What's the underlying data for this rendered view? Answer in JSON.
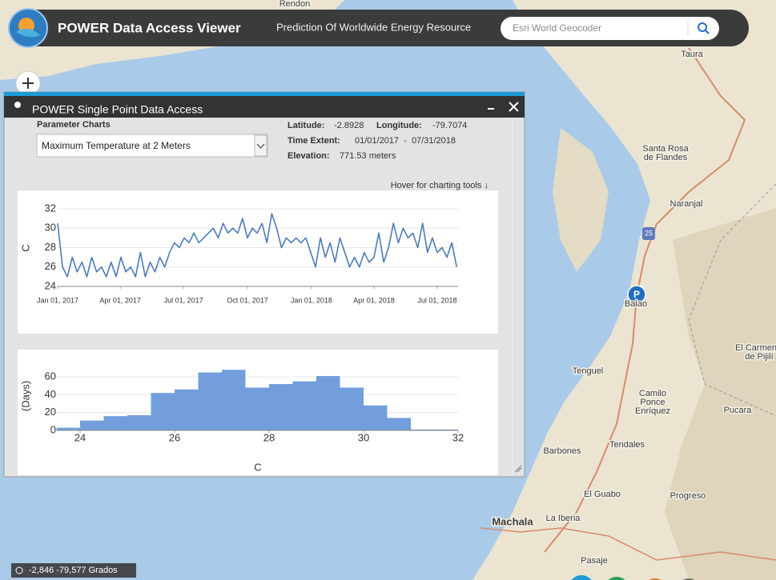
{
  "header": {
    "title": "POWER Data Access Viewer",
    "subtitle": "Prediction Of Worldwide Energy Resource",
    "search_placeholder": "Esri World Geocoder"
  },
  "map": {
    "labels": [
      "Rendon",
      "Taura",
      "Santa Rosa",
      "de Flandes",
      "Naranjal",
      "Balao",
      "El Carmen",
      "de Pijilí",
      "Tenguel",
      "Camilo",
      "Ponce",
      "Enríquez",
      "Pucara",
      "Tendales",
      "Barbones",
      "El Guabo",
      "Progreso",
      "Machala",
      "La Iberia",
      "Pasaje",
      "25"
    ],
    "marker_label": "P",
    "coordinates": "-2,846 -79,577 Grados"
  },
  "panel": {
    "title": "POWER Single Point Data Access",
    "section_label": "Parameter Charts",
    "parameter": "Maximum Temperature at 2 Meters",
    "latitude_label": "Latitude:",
    "latitude": "-2.8928",
    "longitude_label": "Longitude:",
    "longitude": "-79.7074",
    "time_extent_label": "Time Extent:",
    "time_extent": "01/01/2017  -  07/31/2018",
    "elevation_label": "Elevation:",
    "elevation": "771.53 meters",
    "hint": "Hover for charting tools ↓"
  },
  "chart_data": [
    {
      "type": "line",
      "ylabel": "C",
      "color": "#4a7cc4",
      "x": [
        "2017-01-01",
        "2017-01-08",
        "2017-01-15",
        "2017-01-22",
        "2017-01-29",
        "2017-02-05",
        "2017-02-12",
        "2017-02-19",
        "2017-02-26",
        "2017-03-05",
        "2017-03-12",
        "2017-03-19",
        "2017-03-26",
        "2017-04-02",
        "2017-04-09",
        "2017-04-16",
        "2017-04-23",
        "2017-04-30",
        "2017-05-07",
        "2017-05-14",
        "2017-05-21",
        "2017-05-28",
        "2017-06-04",
        "2017-06-11",
        "2017-06-18",
        "2017-06-25",
        "2017-07-02",
        "2017-07-09",
        "2017-07-16",
        "2017-07-23",
        "2017-07-30",
        "2017-08-06",
        "2017-08-13",
        "2017-08-20",
        "2017-08-27",
        "2017-09-03",
        "2017-09-10",
        "2017-09-17",
        "2017-09-24",
        "2017-10-01",
        "2017-10-08",
        "2017-10-15",
        "2017-10-22",
        "2017-10-29",
        "2017-11-05",
        "2017-11-12",
        "2017-11-19",
        "2017-11-26",
        "2017-12-03",
        "2017-12-10",
        "2017-12-17",
        "2017-12-24",
        "2017-12-31",
        "2018-01-07",
        "2018-01-14",
        "2018-01-21",
        "2018-01-28",
        "2018-02-04",
        "2018-02-11",
        "2018-02-18",
        "2018-02-25",
        "2018-03-04",
        "2018-03-11",
        "2018-03-18",
        "2018-03-25",
        "2018-04-01",
        "2018-04-08",
        "2018-04-15",
        "2018-04-22",
        "2018-04-29",
        "2018-05-06",
        "2018-05-13",
        "2018-05-20",
        "2018-05-27",
        "2018-06-03",
        "2018-06-10",
        "2018-06-17",
        "2018-06-24",
        "2018-07-01",
        "2018-07-08",
        "2018-07-15",
        "2018-07-22",
        "2018-07-29"
      ],
      "values": [
        30.5,
        26,
        25,
        27,
        25.5,
        26.5,
        25,
        27,
        25.5,
        26,
        25,
        26.5,
        25,
        27,
        25.5,
        26,
        25,
        27.5,
        25,
        26.5,
        25.5,
        27,
        26,
        27.5,
        28.5,
        28,
        29,
        28.5,
        29.5,
        28.5,
        29,
        29.5,
        30,
        29,
        30.5,
        29.5,
        30,
        29.5,
        31,
        29,
        30,
        29.5,
        30.5,
        28.5,
        31.5,
        30,
        28,
        29,
        28.5,
        29,
        28.5,
        29,
        27.5,
        26,
        29,
        27,
        28.5,
        26.5,
        29,
        27.5,
        26,
        27,
        26,
        27.5,
        26.5,
        27,
        29.5,
        26.5,
        28,
        30.5,
        28.5,
        30,
        29,
        29.5,
        28,
        30.5,
        27.5,
        29,
        27.5,
        28,
        27,
        28.5,
        26
      ],
      "xlim": [
        "2017-01-01",
        "2018-07-31"
      ],
      "xticks": [
        {
          "value": "2017-01-01",
          "label": "Jan 01, 2017"
        },
        {
          "value": "2017-04-01",
          "label": "Apr 01, 2017"
        },
        {
          "value": "2017-07-01",
          "label": "Jul 01, 2017"
        },
        {
          "value": "2017-10-01",
          "label": "Oct 01, 2017"
        },
        {
          "value": "2018-01-01",
          "label": "Jan 01, 2018"
        },
        {
          "value": "2018-04-01",
          "label": "Apr 01, 2018"
        },
        {
          "value": "2018-07-01",
          "label": "Jul 01, 2018"
        }
      ],
      "ylim": [
        24,
        32
      ],
      "yticks": [
        24,
        26,
        28,
        30,
        32
      ],
      "grid": true
    },
    {
      "type": "histogram",
      "xlabel": "C",
      "ylabel": "(Days)",
      "color": "#729fdb",
      "bins": [
        23.5,
        24,
        24.5,
        25,
        25.5,
        26,
        26.5,
        27,
        27.5,
        28,
        28.5,
        29,
        29.5,
        30,
        30.5,
        31,
        31.5,
        32
      ],
      "values": [
        3,
        11,
        16,
        17,
        42,
        46,
        65,
        68,
        48,
        52,
        55,
        61,
        48,
        28,
        14,
        1,
        1
      ],
      "xlim": [
        23.5,
        32
      ],
      "xticks": [
        24,
        26,
        28,
        30,
        32
      ],
      "ylim": [
        0,
        70
      ],
      "yticks": [
        0,
        20,
        40,
        60
      ],
      "grid": true
    }
  ]
}
